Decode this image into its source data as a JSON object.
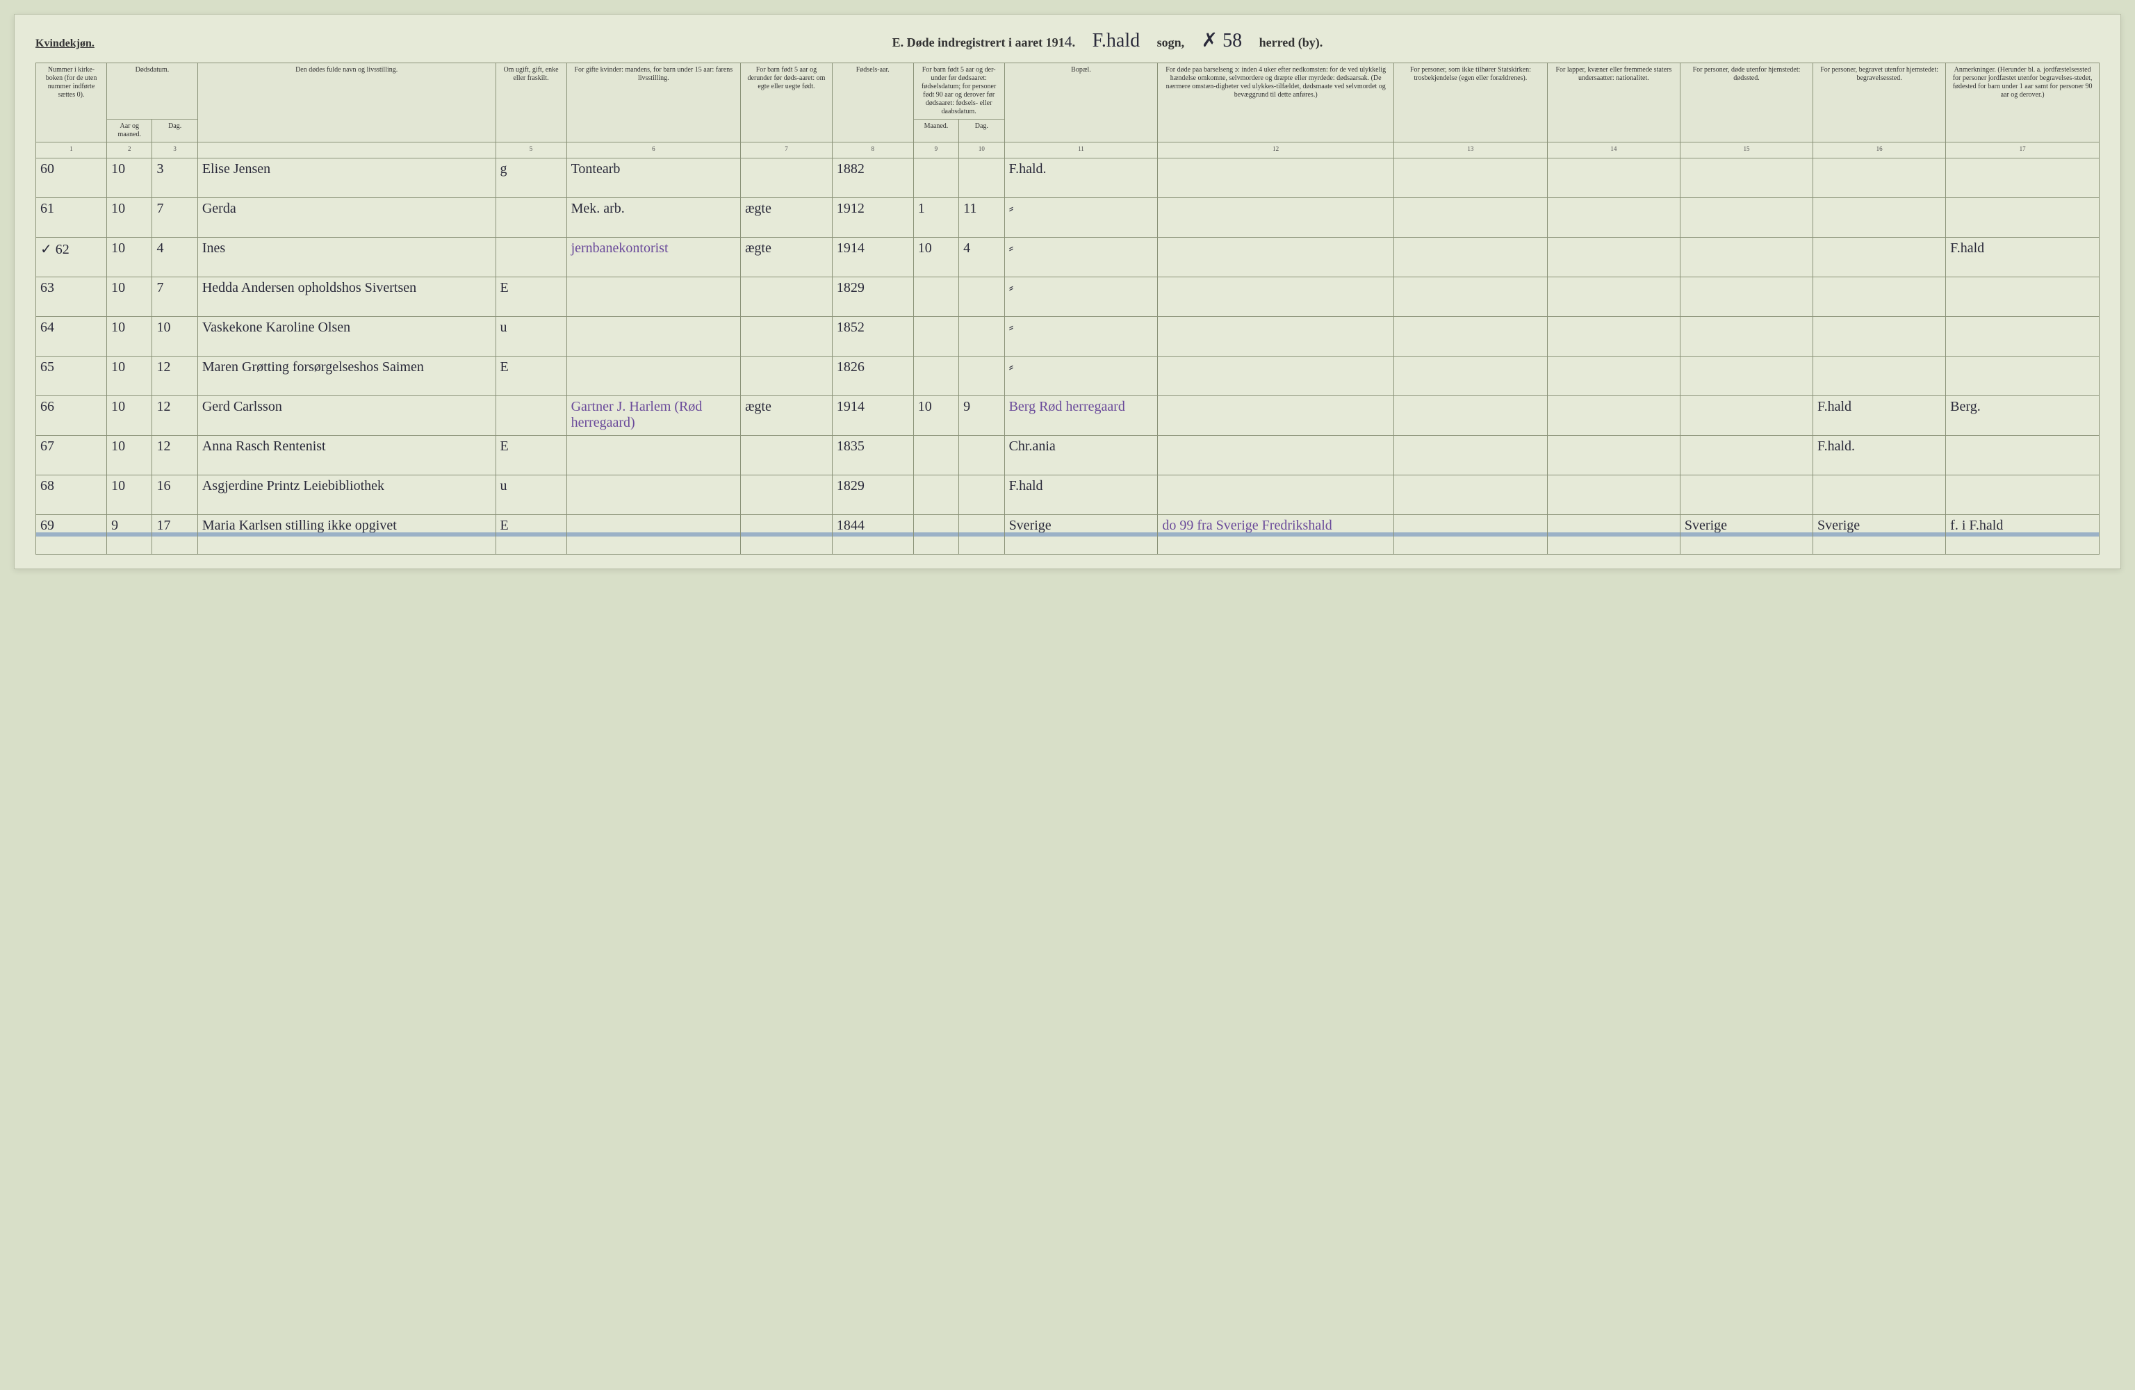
{
  "header": {
    "gender_label": "Kvindekjøn.",
    "title_prefix": "E.  Døde indregistrert i aaret 191",
    "year_suffix": "4",
    "parish_hand": "F.hald",
    "sogn_label": "sogn,",
    "mark_hand": "✗  58",
    "herred_label": "herred (by)."
  },
  "colheads": {
    "c1": "Nummer i kirke-boken (for de uten nummer indførte sættes 0).",
    "c2a": "Dødsdatum.",
    "c2": "Aar og maaned.",
    "c3": "Dag.",
    "c4": "Den dødes fulde navn og livsstilling.",
    "c5": "Om ugift, gift, enke eller fraskilt.",
    "c6": "For gifte kvinder: mandens, for barn under 15 aar: farens livsstilling.",
    "c7": "For barn født 5 aar og derunder før døds-aaret: om egte eller uegte født.",
    "c8": "Fødsels-aar.",
    "c9a": "For barn født 5 aar og der-under før dødsaaret: fødselsdatum; for personer født 90 aar og derover før dødsaaret: fødsels- eller daabsdatum.",
    "c9": "Maaned.",
    "c10": "Dag.",
    "c11": "Bopæl.",
    "c12": "For døde paa barselseng ɔ: inden 4 uker efter nedkomsten: for de ved ulykkelig hændelse omkomne, selvmordere og dræpte eller myrdede: dødsaarsak. (De nærmere omstæn-digheter ved ulykkes-tilfældet, dødsmaate ved selvmordet og bevæggrund til dette anføres.)",
    "c13": "For personer, som ikke tilhører Statskirken: trosbekjendelse (egen eller forældrenes).",
    "c14": "For lapper, kvæner eller fremmede staters undersaatter: nationalitet.",
    "c15": "For personer, døde utenfor hjemstedet: dødssted.",
    "c16": "For personer, begravet utenfor hjemstedet: begravelsessted.",
    "c17": "Anmerkninger. (Herunder bl. a. jordfæstelsessted for personer jordfæstet utenfor begravelses-stedet, fødested for barn under 1 aar samt for personer 90 aar og derover.)"
  },
  "colnums": [
    "1",
    "2",
    "3",
    "",
    "5",
    "6",
    "7",
    "8",
    "9",
    "10",
    "11",
    "12",
    "13",
    "14",
    "15",
    "16",
    "17"
  ],
  "rows": [
    {
      "n": "60",
      "mo": "10",
      "d": "3",
      "name": "Elise Jensen",
      "st": "g",
      "husb": "Tontearb",
      "u5": "",
      "yr": "1882",
      "cm": "",
      "cd": "",
      "res": "F.hald.",
      "cause": "",
      "faith": "",
      "nat": "",
      "dp": "",
      "bp": "",
      "notes": ""
    },
    {
      "n": "61",
      "mo": "10",
      "d": "7",
      "name": "Gerda",
      "st": "",
      "husb": "Mek. arb.",
      "u5": "ægte",
      "yr": "1912",
      "cm": "1",
      "cd": "11",
      "res": "⸗",
      "cause": "",
      "faith": "",
      "nat": "",
      "dp": "",
      "bp": "",
      "notes": ""
    },
    {
      "n": "62",
      "mo": "10",
      "d": "4",
      "name": "Ines",
      "st": "",
      "husb": "jernbanekontorist",
      "u5": "ægte",
      "yr": "1914",
      "cm": "10",
      "cd": "4",
      "res": "⸗",
      "cause": "",
      "faith": "",
      "nat": "",
      "dp": "",
      "bp": "",
      "notes": "F.hald",
      "purple_husb": true,
      "prefix": "✓"
    },
    {
      "n": "63",
      "mo": "10",
      "d": "7",
      "name": "Hedda Andersen opholdshos Sivertsen",
      "st": "E",
      "husb": "",
      "u5": "",
      "yr": "1829",
      "cm": "",
      "cd": "",
      "res": "⸗",
      "cause": "",
      "faith": "",
      "nat": "",
      "dp": "",
      "bp": "",
      "notes": ""
    },
    {
      "n": "64",
      "mo": "10",
      "d": "10",
      "name": "Vaskekone Karoline Olsen",
      "st": "u",
      "husb": "",
      "u5": "",
      "yr": "1852",
      "cm": "",
      "cd": "",
      "res": "⸗",
      "cause": "",
      "faith": "",
      "nat": "",
      "dp": "",
      "bp": "",
      "notes": ""
    },
    {
      "n": "65",
      "mo": "10",
      "d": "12",
      "name": "Maren Grøtting forsørgelseshos Saimen",
      "st": "E",
      "husb": "",
      "u5": "",
      "yr": "1826",
      "cm": "",
      "cd": "",
      "res": "⸗",
      "cause": "",
      "faith": "",
      "nat": "",
      "dp": "",
      "bp": "",
      "notes": ""
    },
    {
      "n": "66",
      "mo": "10",
      "d": "12",
      "name": "Gerd Carlsson",
      "st": "",
      "husb": "Gartner J. Harlem (Rød herregaard)",
      "u5": "ægte",
      "yr": "1914",
      "cm": "10",
      "cd": "9",
      "res": "Berg Rød herregaard",
      "cause": "",
      "faith": "",
      "nat": "",
      "dp": "",
      "bp": "F.hald",
      "notes": "Berg.",
      "purple_husb": true,
      "purple_res": true
    },
    {
      "n": "67",
      "mo": "10",
      "d": "12",
      "name": "Anna Rasch Rentenist",
      "st": "E",
      "husb": "",
      "u5": "",
      "yr": "1835",
      "cm": "",
      "cd": "",
      "res": "Chr.ania",
      "cause": "",
      "faith": "",
      "nat": "",
      "dp": "",
      "bp": "F.hald.",
      "notes": ""
    },
    {
      "n": "68",
      "mo": "10",
      "d": "16",
      "name": "Asgjerdine Printz Leiebibliothek",
      "st": "u",
      "husb": "",
      "u5": "",
      "yr": "1829",
      "cm": "",
      "cd": "",
      "res": "F.hald",
      "cause": "",
      "faith": "",
      "nat": "",
      "dp": "",
      "bp": "",
      "notes": ""
    },
    {
      "n": "69",
      "mo": "9",
      "d": "17",
      "name": "Maria Karlsen stilling ikke opgivet",
      "st": "E",
      "husb": "",
      "u5": "",
      "yr": "1844",
      "cm": "",
      "cd": "",
      "res": "Sverige",
      "cause": "do 99 fra Sverige Fredrikshald",
      "faith": "",
      "nat": "",
      "dp": "Sverige",
      "bp": "Sverige",
      "notes": "f. i F.hald",
      "strike": true,
      "purple_cause": true
    }
  ]
}
